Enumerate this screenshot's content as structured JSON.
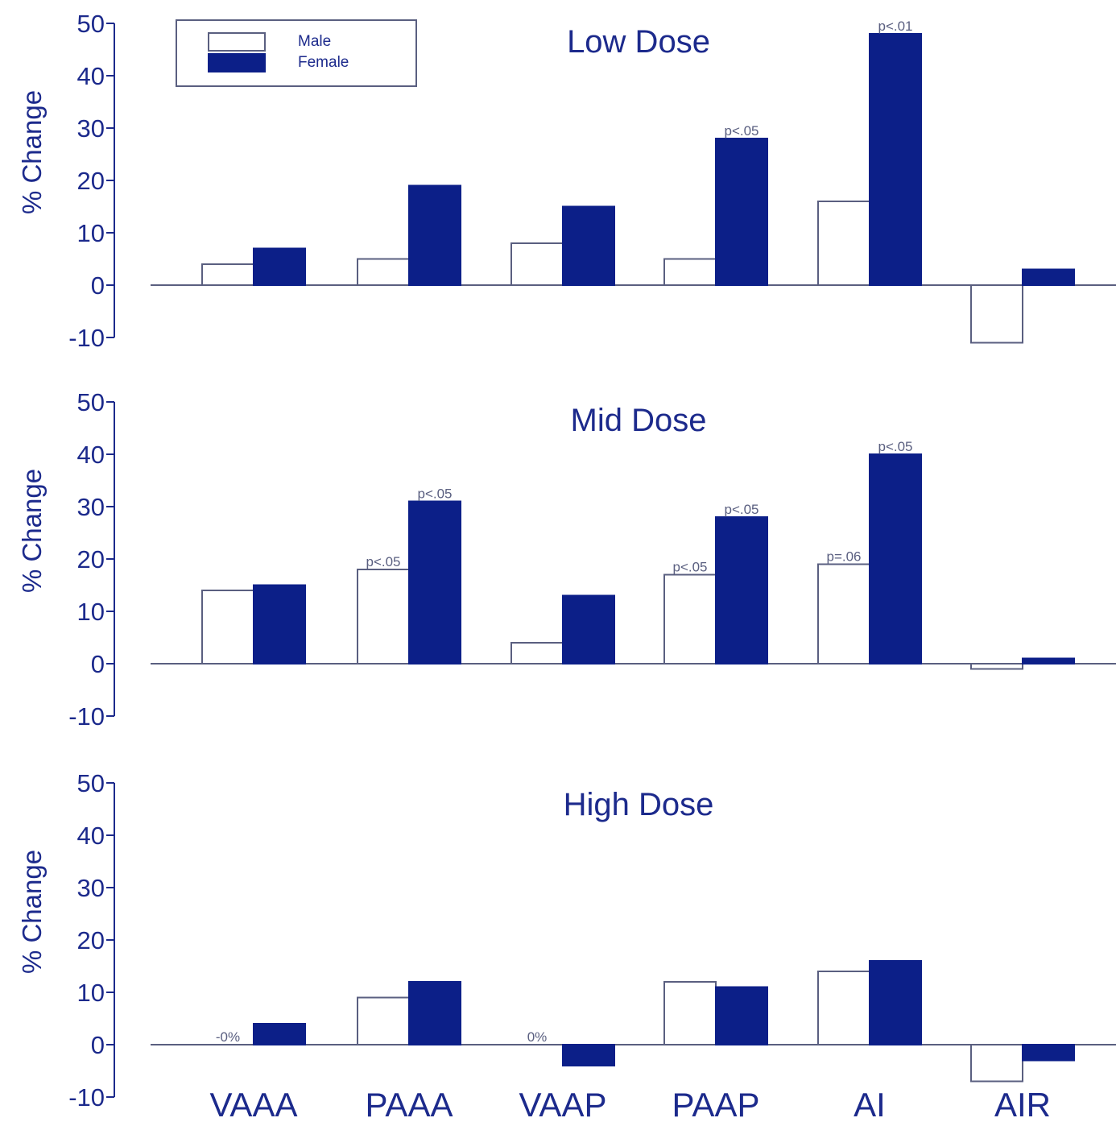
{
  "colors": {
    "axis": "#1c2a8c",
    "female": "#0c1f88",
    "male": "#ffffff",
    "male_stroke": "#5a5f80",
    "text": "#1c2a8c"
  },
  "legend": {
    "male_label": "Male",
    "female_label": "Female"
  },
  "chart_data": [
    {
      "type": "bar",
      "title": "Low Dose",
      "ylabel": "% Change",
      "ylim": [
        -10,
        50
      ],
      "yticks": [
        "50",
        "40",
        "30",
        "20",
        "10",
        "0",
        "-10"
      ],
      "categories": [
        "VAAA",
        "PAAA",
        "VAAP",
        "PAAP",
        "AI",
        "AIR"
      ],
      "series": [
        {
          "name": "Male",
          "values": [
            4,
            5,
            8,
            5,
            16,
            -11
          ]
        },
        {
          "name": "Female",
          "values": [
            7,
            19,
            15,
            28,
            48,
            3
          ]
        }
      ],
      "annotations": [
        {
          "category": "PAAP",
          "series": "Female",
          "text": "p<.05"
        },
        {
          "category": "AI",
          "series": "Female",
          "text": "p<.01"
        }
      ]
    },
    {
      "type": "bar",
      "title": "Mid Dose",
      "ylabel": "% Change",
      "ylim": [
        -10,
        50
      ],
      "yticks": [
        "50",
        "40",
        "30",
        "20",
        "10",
        "0",
        "-10"
      ],
      "categories": [
        "VAAA",
        "PAAA",
        "VAAP",
        "PAAP",
        "AI",
        "AIR"
      ],
      "series": [
        {
          "name": "Male",
          "values": [
            14,
            18,
            4,
            17,
            19,
            -1
          ]
        },
        {
          "name": "Female",
          "values": [
            15,
            31,
            13,
            28,
            40,
            1
          ]
        }
      ],
      "annotations": [
        {
          "category": "PAAA",
          "series": "Male",
          "text": "p<.05"
        },
        {
          "category": "PAAA",
          "series": "Female",
          "text": "p<.05"
        },
        {
          "category": "PAAP",
          "series": "Male",
          "text": "p<.05"
        },
        {
          "category": "PAAP",
          "series": "Female",
          "text": "p<.05"
        },
        {
          "category": "AI",
          "series": "Male",
          "text": "p=.06"
        },
        {
          "category": "AI",
          "series": "Female",
          "text": "p<.05"
        }
      ]
    },
    {
      "type": "bar",
      "title": "High Dose",
      "ylabel": "% Change",
      "ylim": [
        -10,
        50
      ],
      "yticks": [
        "50",
        "40",
        "30",
        "20",
        "10",
        "0",
        "-10"
      ],
      "categories": [
        "VAAA",
        "PAAA",
        "VAAP",
        "PAAP",
        "AI",
        "AIR"
      ],
      "series": [
        {
          "name": "Male",
          "values": [
            0,
            9,
            0,
            12,
            14,
            -7
          ]
        },
        {
          "name": "Female",
          "values": [
            4,
            12,
            -4,
            11,
            16,
            -3
          ]
        }
      ],
      "annotations": [
        {
          "category": "VAAA",
          "series": "Male",
          "text": "-0%"
        },
        {
          "category": "VAAP",
          "series": "Male",
          "text": "0%"
        }
      ]
    }
  ]
}
